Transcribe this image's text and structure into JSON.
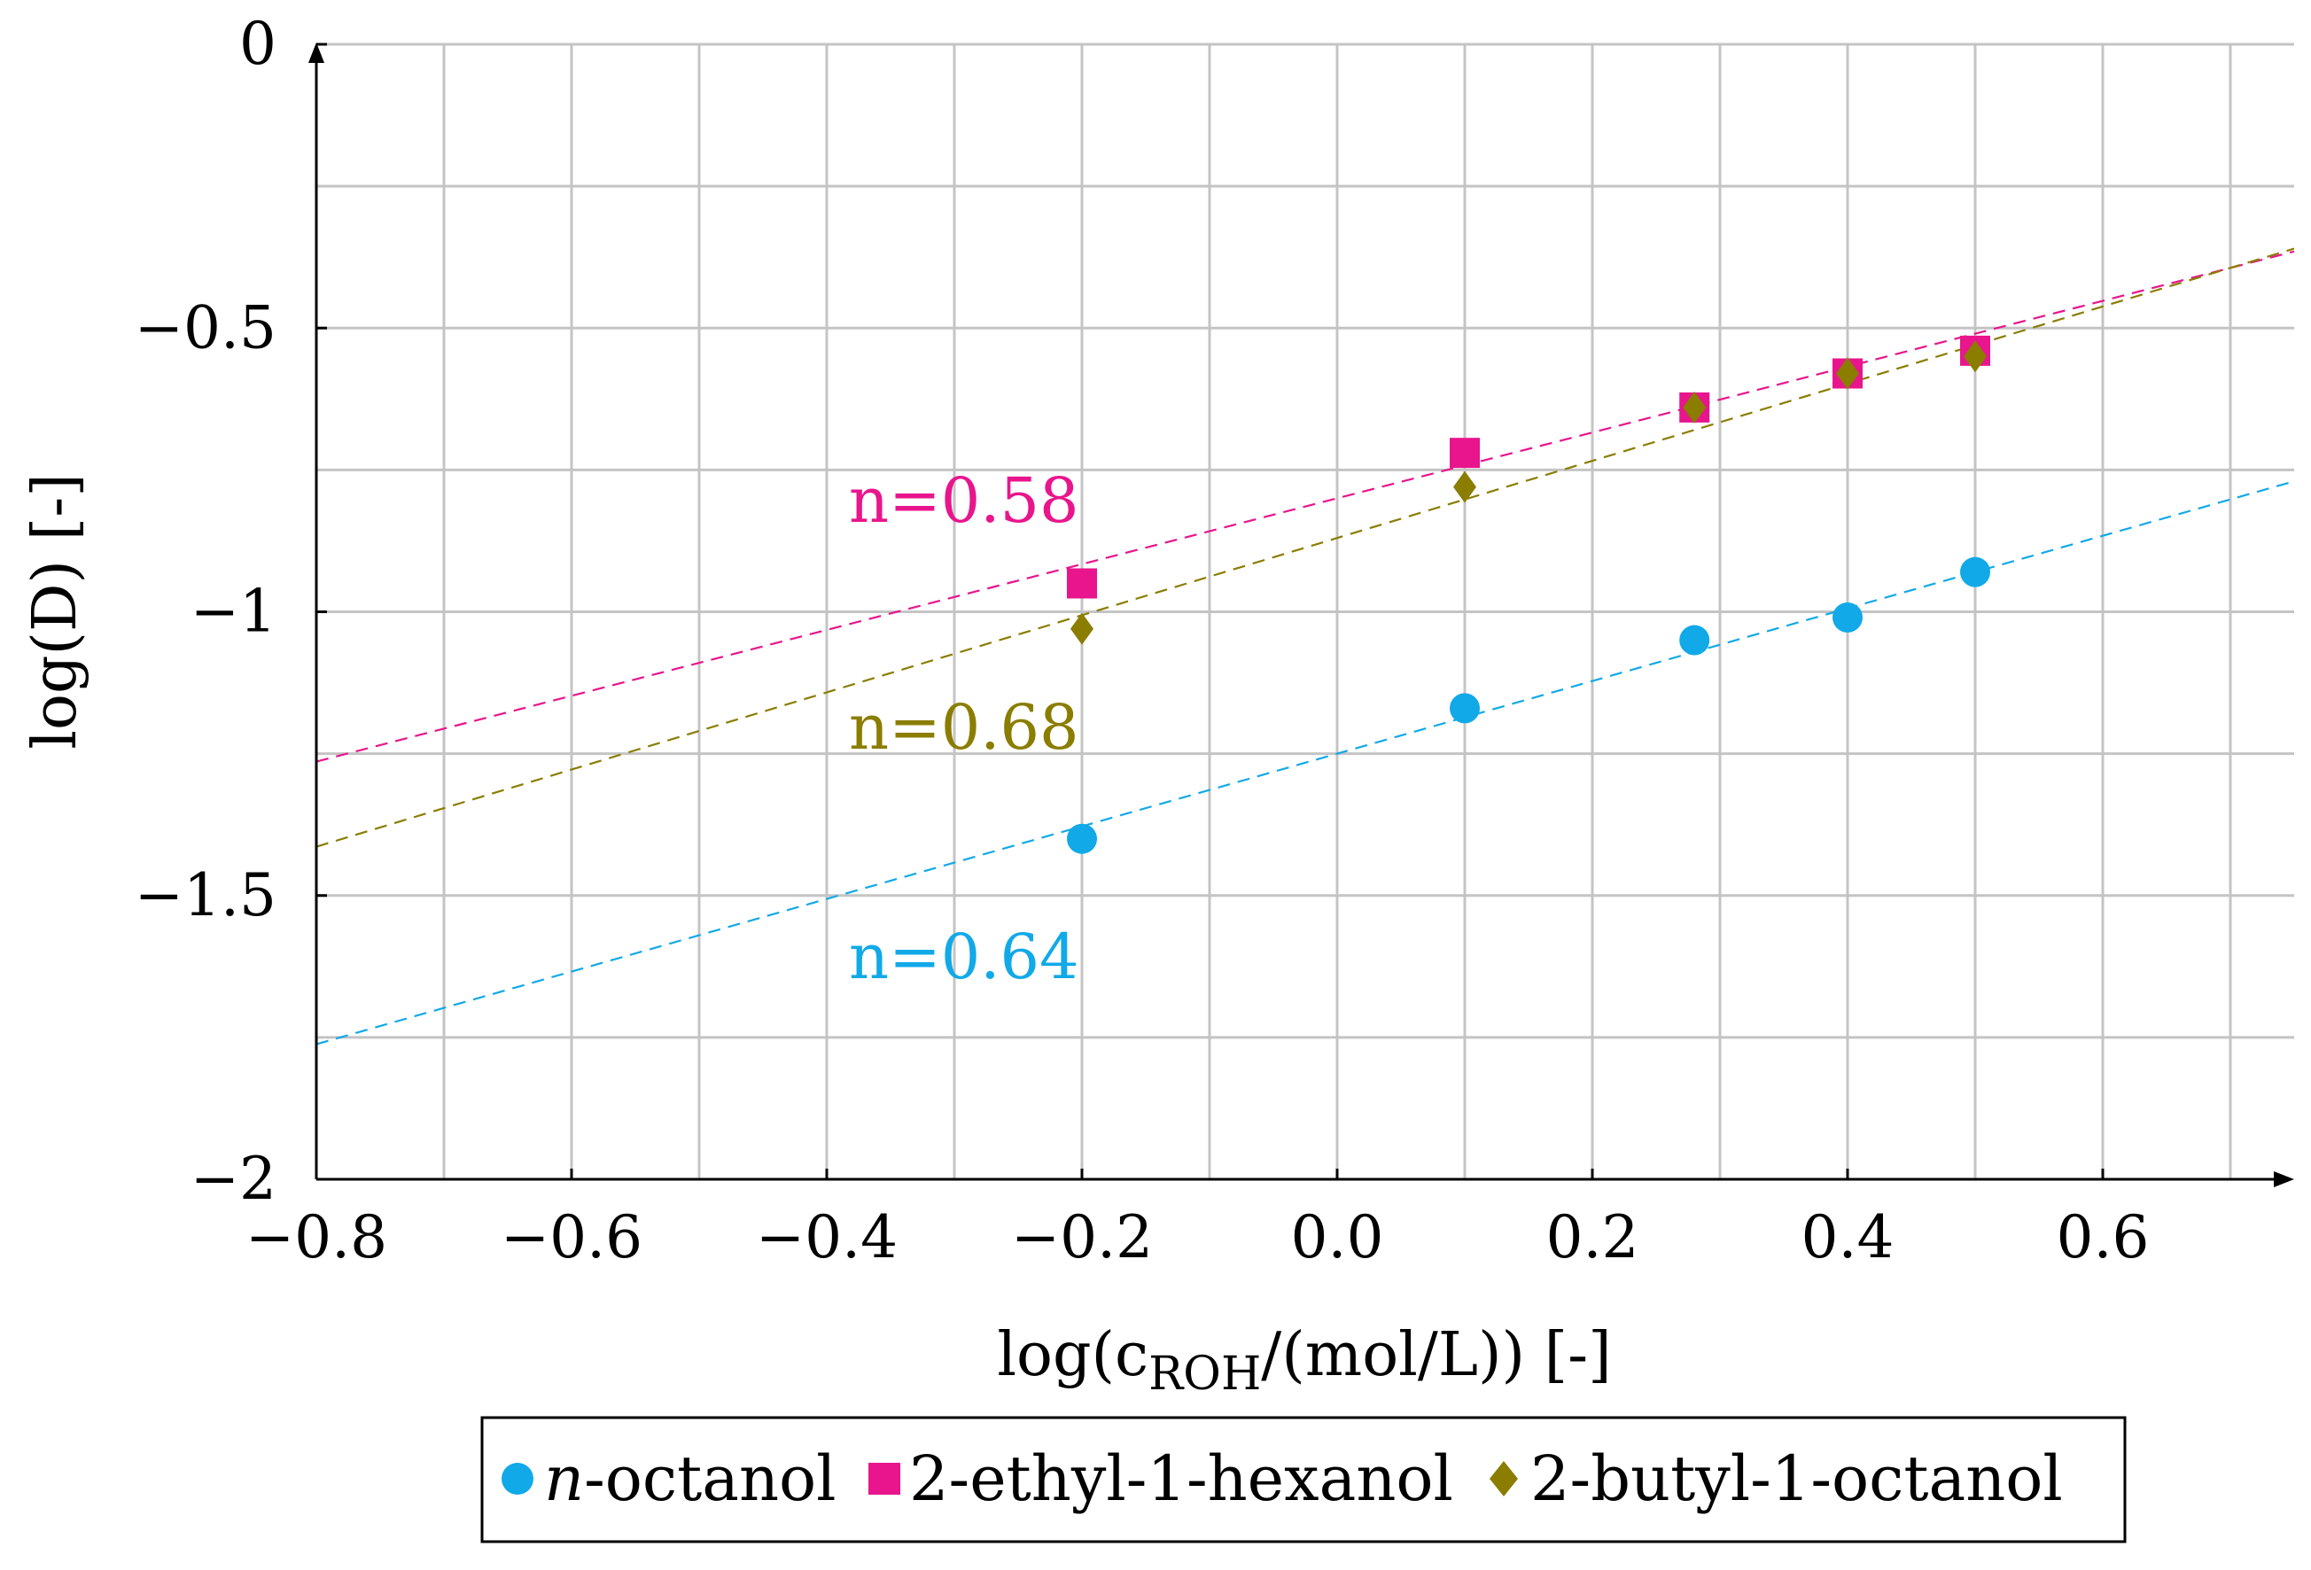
{
  "chart_data": {
    "type": "scatter",
    "xlabel": "log(cROH/(mol/L)) [-]",
    "xlabel_main": "log(c",
    "xlabel_sub": "ROH",
    "xlabel_rest": "/(mol/L)) [-]",
    "ylabel": "log(D) [-]",
    "xlim": [
      -0.8,
      0.75
    ],
    "ylim": [
      -2,
      0
    ],
    "grid": true,
    "x_ticks": [
      -0.8,
      -0.6,
      -0.4,
      -0.2,
      0.0,
      0.2,
      0.4,
      0.6
    ],
    "x_tick_labels": [
      "−0.8",
      "−0.6",
      "−0.4",
      "−0.2",
      "0.0",
      "0.2",
      "0.4",
      "0.6"
    ],
    "y_ticks": [
      0,
      -0.5,
      -1,
      -1.5,
      -2
    ],
    "y_tick_labels": [
      "0",
      "−0.5",
      "−1",
      "−1.5",
      "−2"
    ],
    "x_minor_grid": [
      -0.7,
      -0.5,
      -0.3,
      -0.1,
      0.1,
      0.3,
      0.5,
      0.7
    ],
    "y_minor_grid": [
      -0.25,
      -0.75,
      -1.25,
      -1.75
    ],
    "series": [
      {
        "name": "n-octanol",
        "legend_italic": "n",
        "legend_rest": "-octanol",
        "color": "#11a9e8",
        "marker": "circle",
        "x": [
          -0.2,
          0.1,
          0.28,
          0.4,
          0.5
        ],
        "y": [
          -1.4,
          -1.17,
          -1.05,
          -1.01,
          -0.93
        ],
        "fit": {
          "label": "n=0.64",
          "slope": 0.64,
          "intercept": -1.25
        }
      },
      {
        "name": "2-ethyl-1-hexanol",
        "color": "#e8158d",
        "marker": "square",
        "x": [
          -0.2,
          0.1,
          0.28,
          0.4,
          0.5
        ],
        "y": [
          -0.95,
          -0.72,
          -0.64,
          -0.58,
          -0.54
        ],
        "fit": {
          "label": "n=0.58",
          "slope": 0.58,
          "intercept": -0.8
        }
      },
      {
        "name": "2-butyl-1-octanol",
        "color": "#8a7d00",
        "marker": "diamond",
        "x": [
          -0.2,
          0.1,
          0.28,
          0.4,
          0.5
        ],
        "y": [
          -1.03,
          -0.78,
          -0.64,
          -0.58,
          -0.55
        ],
        "fit": {
          "label": "n=0.68",
          "slope": 0.68,
          "intercept": -0.87
        }
      }
    ]
  }
}
